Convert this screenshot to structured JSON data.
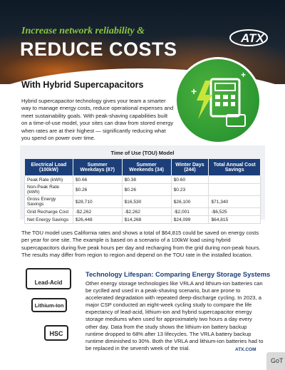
{
  "header": {
    "tagline": "Increase network reliability &",
    "title": "REDUCE COSTS",
    "logo": "ATX"
  },
  "subtitle": "With Hybrid Supercapacitors",
  "intro": "Hybrid supercapacitor technology gives your team a smarter way to manage energy costs, reduce operational expenses and meet sustainability goals. With peak-shaving capabilities built on a time-of-use model, your sites can draw from stored energy when rates are at their highest — significantly reducing what you spend on power over time.",
  "table": {
    "title": "Time of Use (TOU) Model",
    "headers": [
      "Electrical Load (100kW)",
      "Summer Weekdays (87)",
      "Summer Weekends (34)",
      "Winter Days (244)",
      "Total Annual Cost Savings"
    ],
    "rows": [
      [
        "Peak Rate (kWh)",
        "$0.66",
        "$0.38",
        "$0.60",
        null
      ],
      [
        "Non-Peak Rate (kWh)",
        "$0.26",
        "$0.26",
        "$0.23",
        null
      ],
      [
        "Gross Energy Savings",
        "$28,710",
        "$16,530",
        "$26,100",
        "$71,340"
      ],
      [
        "Grid Recharge Cost",
        "-$2,262",
        "-$2,262",
        "-$2,001",
        "-$6,525"
      ],
      [
        "Net Energy Savings",
        "$26,448",
        "$14,268",
        "$24,099",
        "$64,815"
      ]
    ]
  },
  "para2": "The TOU model uses California rates and shows a total of $64,815 could be saved on energy costs per year for one site. The example is based on a scenario of a 100kW load using hybrid supercapacitors during five peak hours per day and recharging from the grid during non-peak hours. The results may differ from region to region and depend on the TOU rate in the installed location.",
  "icons": [
    "Lead-Acid",
    "Lithium-Ion",
    "HSC"
  ],
  "section": {
    "heading": "Technology Lifespan: Comparing Energy Storage Systems",
    "body": "Other energy storage technologies like VRLA and lithium-ion batteries can be cyclled and used in a peak-shaving scenario, but are prone to accelerated degradation with repeated deep-discharge cycling. In 2023, a major CSP conducted an eight-week cycling study to compare the life expectancy of lead-acid, lithium-ion and hybrid supercapacitor energy storage mediums when used for approximately two hours a day every other day. Data from the study shows the lithium-ion battery backup runtime dropped to 68% after 13 lifecycles. The VRLA battery backup runtime diminished to 30%. Both the VRLA and lithium-ion batteries had to be replaced in the seventh week of the trial."
  },
  "footer": {
    "url": "ATX.COM",
    "button": "GoT"
  }
}
